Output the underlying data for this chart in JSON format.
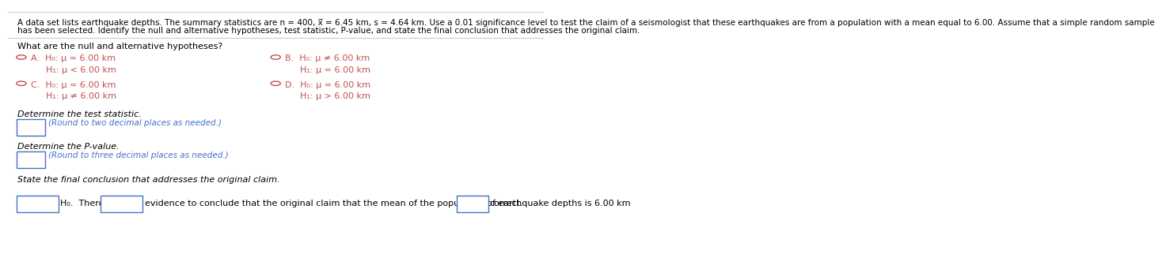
{
  "bg_color": "#ffffff",
  "top_line_color": "#cccccc",
  "separator_color": "#cccccc",
  "text_color": "#000000",
  "blue_color": "#4472c4",
  "orange_color": "#c0504d",
  "intro_text": "A data set lists earthquake depths. The summary statistics are n = 400, x̅ = 6.45 km, s = 4.64 km. Use a 0.01 significance level to test the claim of a seismologist that these earthquakes are from a population with a mean equal to 6.00. Assume that a simple random sample\nhas been selected. Identify the null and alternative hypotheses, test statistic, P-value, and state the final conclusion that addresses the original claim.",
  "question_text": "What are the null and alternative hypotheses?",
  "optA_line1": "H₀: μ = 6.00 km",
  "optA_line2": "H₁: μ < 6.00 km",
  "optB_line1": "H₀: μ ≠ 6.00 km",
  "optB_line2": "H₁: μ = 6.00 km",
  "optC_line1": "H₀: μ = 6.00 km",
  "optC_line2": "H₁: μ ≠ 6.00 km",
  "optD_line1": "H₀: μ = 6.00 km",
  "optD_line2": "H₁: μ > 6.00 km",
  "det_test_stat": "Determine the test statistic.",
  "round2": "(Round to two decimal places as needed.)",
  "det_pvalue": "Determine the P-value.",
  "round3": "(Round to three decimal places as needed.)",
  "final_conc": "State the final conclusion that addresses the original claim.",
  "final_line": " H₀.  There is                  evidence to conclude that the original claim that the mean of the population of earthquake depths is 6.00 km                   correct.",
  "font_size_intro": 7.5,
  "font_size_main": 8.0,
  "font_size_options": 8.0,
  "font_size_small": 7.5
}
